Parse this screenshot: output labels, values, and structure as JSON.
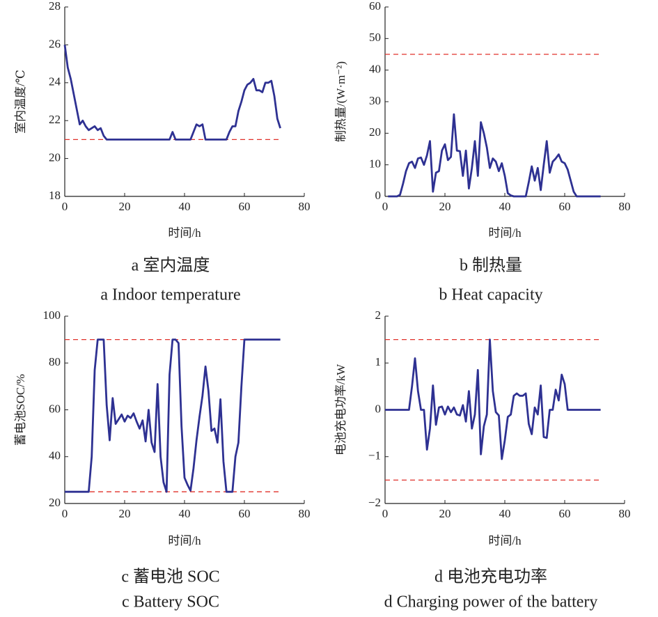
{
  "chart_data": [
    {
      "type": "line",
      "xlabel": "时间/h",
      "ylabel": "室内温度/℃",
      "caption_cn": "a  室内温度",
      "caption_en": "a  Indoor temperature",
      "xlim": [
        0,
        80
      ],
      "xticks": [
        0,
        20,
        40,
        60,
        80
      ],
      "ylim": [
        18,
        28
      ],
      "yticks": [
        18,
        20,
        22,
        24,
        26,
        28
      ],
      "hlines": [
        21
      ],
      "hline_color": "#e0302a",
      "x": [
        0,
        1,
        2,
        3,
        4,
        5,
        6,
        7,
        8,
        9,
        10,
        11,
        12,
        13,
        14,
        15,
        16,
        17,
        18,
        19,
        20,
        21,
        22,
        23,
        24,
        25,
        26,
        27,
        28,
        29,
        30,
        31,
        32,
        33,
        34,
        35,
        36,
        37,
        38,
        39,
        40,
        41,
        42,
        43,
        44,
        45,
        46,
        47,
        48,
        49,
        50,
        51,
        52,
        53,
        54,
        55,
        56,
        57,
        58,
        59,
        60,
        61,
        62,
        63,
        64,
        65,
        66,
        67,
        68,
        69,
        70,
        71,
        72
      ],
      "series": [
        {
          "color": "#2e3192",
          "values": [
            26,
            24.8,
            24.2,
            23.4,
            22.6,
            21.8,
            22,
            21.7,
            21.5,
            21.6,
            21.7,
            21.5,
            21.6,
            21.2,
            21,
            21,
            21,
            21,
            21,
            21,
            21,
            21,
            21,
            21,
            21,
            21,
            21,
            21,
            21,
            21,
            21,
            21,
            21,
            21,
            21,
            21,
            21.4,
            21,
            21,
            21,
            21,
            21,
            21,
            21.4,
            21.8,
            21.7,
            21.8,
            21,
            21,
            21,
            21,
            21,
            21,
            21,
            21,
            21.4,
            21.7,
            21.7,
            22.5,
            23,
            23.6,
            23.9,
            24,
            24.2,
            23.6,
            23.6,
            23.5,
            24,
            24,
            24.1,
            23.3,
            22.1,
            21.6
          ]
        }
      ]
    },
    {
      "type": "line",
      "xlabel": "时间/h",
      "ylabel": "制热量/(W·m⁻²)",
      "caption_cn": "b  制热量",
      "caption_en": "b  Heat capacity",
      "xlim": [
        0,
        80
      ],
      "xticks": [
        0,
        20,
        40,
        60,
        80
      ],
      "ylim": [
        0,
        60
      ],
      "yticks": [
        0,
        10,
        20,
        30,
        40,
        50,
        60
      ],
      "hlines": [
        45
      ],
      "hline_color": "#e0302a",
      "x": [
        1,
        2,
        3,
        4,
        5,
        6,
        7,
        8,
        9,
        10,
        11,
        12,
        13,
        14,
        15,
        16,
        17,
        18,
        19,
        20,
        21,
        22,
        23,
        24,
        25,
        26,
        27,
        28,
        29,
        30,
        31,
        32,
        33,
        34,
        35,
        36,
        37,
        38,
        39,
        40,
        41,
        42,
        43,
        44,
        45,
        46,
        47,
        48,
        49,
        50,
        51,
        52,
        53,
        54,
        55,
        56,
        57,
        58,
        59,
        60,
        61,
        62,
        63,
        64,
        65,
        66,
        67,
        68,
        69,
        70,
        71,
        72
      ],
      "series": [
        {
          "color": "#2e3192",
          "values": [
            0,
            0,
            0,
            0,
            0.5,
            4,
            8,
            10.5,
            11,
            9,
            12,
            12.3,
            10,
            13,
            17.5,
            1.5,
            7.5,
            8,
            14.5,
            16.5,
            11.5,
            12.5,
            26,
            14.5,
            14.3,
            6.5,
            14.5,
            2.5,
            9,
            17.5,
            6.5,
            23.5,
            20,
            15.5,
            9,
            12,
            11,
            8,
            10.5,
            6.5,
            1,
            0.3,
            0,
            0,
            0,
            0,
            0,
            4.5,
            9.5,
            5,
            9,
            2,
            10,
            17.5,
            7.5,
            11,
            12,
            13.3,
            11,
            10.5,
            8.5,
            5,
            1.5,
            0,
            0,
            0,
            0,
            0,
            0,
            0,
            0,
            0
          ]
        }
      ]
    },
    {
      "type": "line",
      "xlabel": "时间/h",
      "ylabel": "蓄电池SOC/%",
      "caption_cn": "c  蓄电池 SOC",
      "caption_en": "c  Battery SOC",
      "xlim": [
        0,
        80
      ],
      "xticks": [
        0,
        20,
        40,
        60,
        80
      ],
      "ylim": [
        20,
        100
      ],
      "yticks": [
        20,
        40,
        60,
        80,
        100
      ],
      "hlines": [
        25,
        90
      ],
      "hline_color": "#e0302a",
      "x": [
        0,
        1,
        2,
        3,
        4,
        5,
        6,
        7,
        8,
        9,
        10,
        11,
        12,
        13,
        14,
        15,
        16,
        17,
        18,
        19,
        20,
        21,
        22,
        23,
        24,
        25,
        26,
        27,
        28,
        29,
        30,
        31,
        32,
        33,
        34,
        35,
        36,
        37,
        38,
        39,
        40,
        41,
        42,
        43,
        44,
        45,
        46,
        47,
        48,
        49,
        50,
        51,
        52,
        53,
        54,
        55,
        56,
        57,
        58,
        59,
        60,
        61,
        62,
        63,
        64,
        65,
        66,
        67,
        68,
        69,
        70,
        71,
        72
      ],
      "series": [
        {
          "color": "#2e3192",
          "values": [
            25,
            25,
            25,
            25,
            25,
            25,
            25,
            25,
            25,
            40,
            77,
            90,
            90,
            90,
            62,
            47,
            65,
            54,
            56,
            58,
            55,
            57.5,
            56.5,
            58.5,
            55,
            52,
            55.5,
            46.5,
            60,
            46,
            42,
            71,
            40,
            29,
            25,
            75,
            90,
            90,
            88.5,
            53,
            31,
            28,
            25.5,
            35,
            47,
            57,
            66,
            78.5,
            68,
            51,
            52,
            46,
            64.5,
            38,
            25,
            25,
            25,
            40,
            46,
            70,
            90,
            90,
            90,
            90,
            90,
            90,
            90,
            90,
            90,
            90,
            90,
            90,
            90
          ]
        }
      ]
    },
    {
      "type": "line",
      "xlabel": "时间/h",
      "ylabel": "电池充电功率/kW",
      "caption_cn": "d  电池充电功率",
      "caption_en": "d  Charging power of the battery",
      "xlim": [
        0,
        80
      ],
      "xticks": [
        0,
        20,
        40,
        60,
        80
      ],
      "ylim": [
        -2,
        2
      ],
      "yticks": [
        {
          "value": -2,
          "label": "−2"
        },
        {
          "value": -1,
          "label": "−1"
        },
        0,
        1,
        2
      ],
      "hlines": [
        -1.5,
        1.5
      ],
      "hline_color": "#e0302a",
      "x": [
        0,
        1,
        2,
        3,
        4,
        5,
        6,
        7,
        8,
        9,
        10,
        11,
        12,
        13,
        14,
        15,
        16,
        17,
        18,
        19,
        20,
        21,
        22,
        23,
        24,
        25,
        26,
        27,
        28,
        29,
        30,
        31,
        32,
        33,
        34,
        35,
        36,
        37,
        38,
        39,
        40,
        41,
        42,
        43,
        44,
        45,
        46,
        47,
        48,
        49,
        50,
        51,
        52,
        53,
        54,
        55,
        56,
        57,
        58,
        59,
        60,
        61,
        62,
        63,
        64,
        65,
        66,
        67,
        68,
        69,
        70,
        71,
        72
      ],
      "series": [
        {
          "color": "#2e3192",
          "values": [
            0,
            0,
            0,
            0,
            0,
            0,
            0,
            0,
            0,
            0.5,
            1.1,
            0.4,
            0,
            0,
            -0.85,
            -0.4,
            0.52,
            -0.32,
            0.05,
            0.07,
            -0.1,
            0.07,
            -0.05,
            0.05,
            -0.1,
            -0.12,
            0.1,
            -0.25,
            0.4,
            -0.4,
            -0.1,
            0.85,
            -0.95,
            -0.35,
            -0.1,
            1.5,
            0.4,
            -0.05,
            -0.12,
            -1.05,
            -0.65,
            -0.15,
            -0.1,
            0.3,
            0.35,
            0.3,
            0.3,
            0.35,
            -0.3,
            -0.52,
            0.05,
            -0.1,
            0.52,
            -0.58,
            -0.6,
            0,
            0,
            0.43,
            0.2,
            0.75,
            0.55,
            0,
            0,
            0,
            0,
            0,
            0,
            0,
            0,
            0,
            0,
            0,
            0
          ]
        }
      ]
    }
  ]
}
